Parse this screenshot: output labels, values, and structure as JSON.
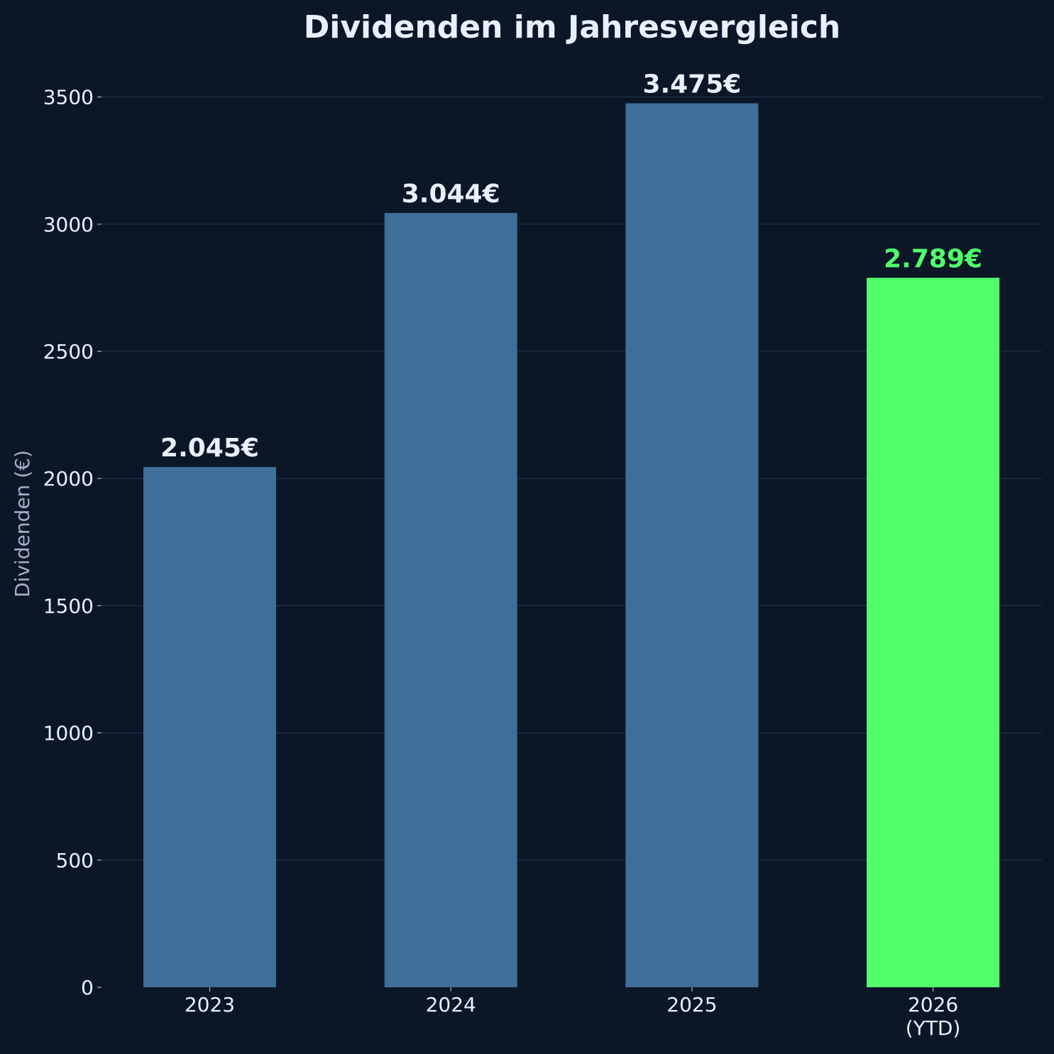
{
  "chart_data": {
    "type": "bar",
    "title": "Dividenden im Jahresvergleich",
    "xlabel": "",
    "ylabel": "Dividenden (€)",
    "categories": [
      [
        "2023"
      ],
      [
        "2024"
      ],
      [
        "2025"
      ],
      [
        "2026",
        "(YTD)"
      ]
    ],
    "values": [
      2045,
      3044,
      3475,
      2789
    ],
    "value_labels": [
      "2.045€",
      "3.044€",
      "3.475€",
      "2.789€"
    ],
    "bar_colors": [
      "#3e6f99",
      "#3e6f99",
      "#3e6f99",
      "#52ff6b"
    ],
    "value_label_colors": [
      "#e8f0ff",
      "#e8f0ff",
      "#e8f0ff",
      "#52ff6b"
    ],
    "ylim": [
      0,
      3650
    ],
    "yticks": [
      0,
      500,
      1000,
      1500,
      2000,
      2500,
      3000,
      3500
    ],
    "grid": "horizontal",
    "colors": {
      "background": "#0b1727",
      "grid": "#1f3048",
      "text": "#e8f0ff",
      "axis_label": "#9fb0c8",
      "tick": "#9fb0c8"
    }
  }
}
